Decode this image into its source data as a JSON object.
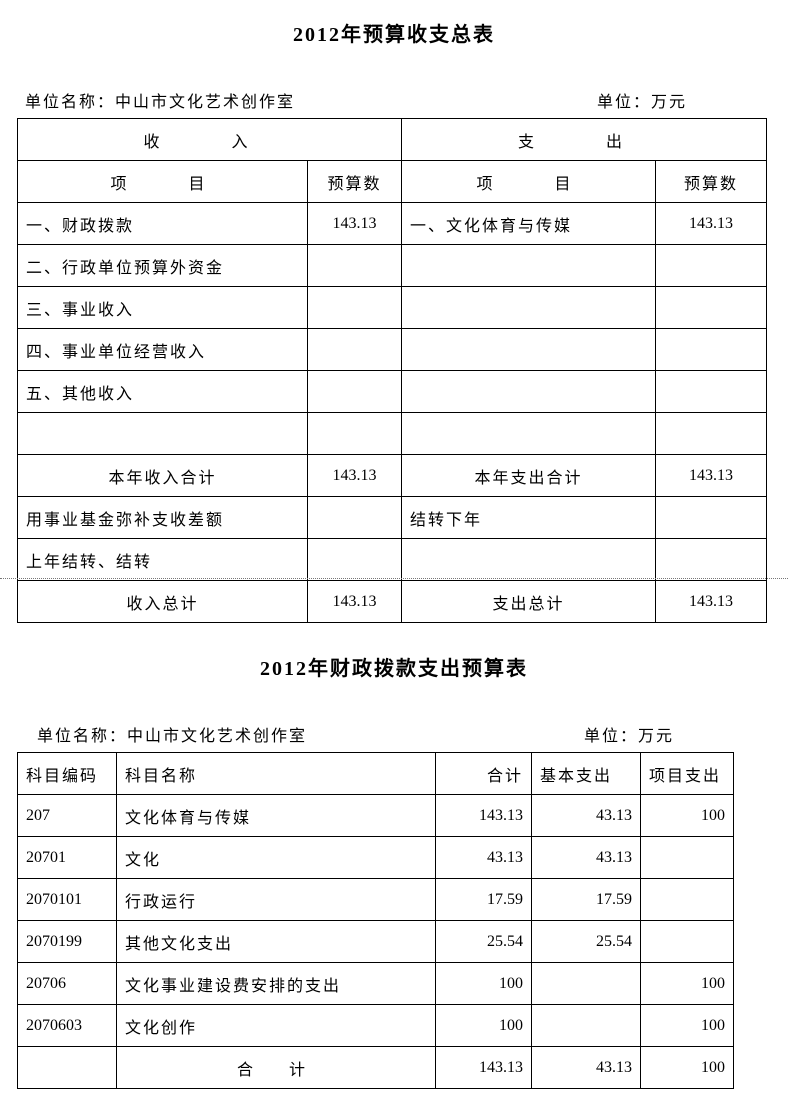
{
  "table1": {
    "title": "2012年预算收支总表",
    "unit_name": "单位名称：中山市文化艺术创作室",
    "unit": "单位：万元",
    "income_header": "收　入",
    "expense_header": "支　出",
    "item_header": "项　　目",
    "budget_header": "预算数",
    "rows": [
      {
        "income_item": "一、财政拨款",
        "income_value": "143.13",
        "expense_item": "一、文化体育与传媒",
        "expense_value": "143.13"
      },
      {
        "income_item": "二、行政单位预算外资金",
        "income_value": "",
        "expense_item": "",
        "expense_value": ""
      },
      {
        "income_item": "三、事业收入",
        "income_value": "",
        "expense_item": "",
        "expense_value": ""
      },
      {
        "income_item": "四、事业单位经营收入",
        "income_value": "",
        "expense_item": "",
        "expense_value": ""
      },
      {
        "income_item": "五、其他收入",
        "income_value": "",
        "expense_item": "",
        "expense_value": ""
      },
      {
        "income_item": "",
        "income_value": "",
        "expense_item": "",
        "expense_value": ""
      },
      {
        "income_item": "本年收入合计",
        "income_value": "143.13",
        "expense_item": "本年支出合计",
        "expense_value": "143.13"
      },
      {
        "income_item": "用事业基金弥补支收差额",
        "income_value": "",
        "expense_item": "结转下年",
        "expense_value": ""
      },
      {
        "income_item": "上年结转、结转",
        "income_value": "",
        "expense_item": "",
        "expense_value": ""
      },
      {
        "income_item": "收入总计",
        "income_value": "143.13",
        "expense_item": "支出总计",
        "expense_value": "143.13"
      }
    ]
  },
  "table2": {
    "title": "2012年财政拨款支出预算表",
    "unit_name": "单位名称：中山市文化艺术创作室",
    "unit": "单位：万元",
    "headers": [
      "科目编码",
      "科目名称",
      "合计",
      "基本支出",
      "项目支出"
    ],
    "rows": [
      [
        "207",
        "文化体育与传媒",
        "143.13",
        "43.13",
        "100"
      ],
      [
        "20701",
        "文化",
        "43.13",
        "43.13",
        ""
      ],
      [
        "2070101",
        "行政运行",
        "17.59",
        "17.59",
        ""
      ],
      [
        "2070199",
        "其他文化支出",
        "25.54",
        "25.54",
        ""
      ],
      [
        "20706",
        "文化事业建设费安排的支出",
        "100",
        "",
        "100"
      ],
      [
        "2070603",
        "文化创作",
        "100",
        "",
        "100"
      ]
    ],
    "total_label": "合　计",
    "total": [
      "143.13",
      "43.13",
      "100"
    ]
  }
}
